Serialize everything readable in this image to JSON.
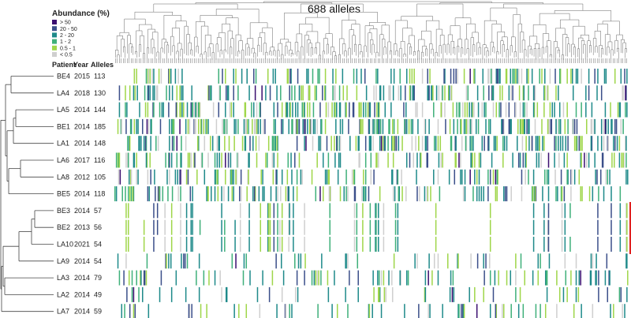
{
  "chart_data": {
    "type": "heatmap",
    "title": "688 alleles",
    "legend": {
      "title": "Abundance (%)",
      "placement": "top-left",
      "entries": [
        {
          "label": "> 50",
          "color": "#3b0f70"
        },
        {
          "label": "20 - 50",
          "color": "#3b4f8a"
        },
        {
          "label": "2 - 20",
          "color": "#1f8a8a"
        },
        {
          "label": "1 - 2",
          "color": "#3fb07a"
        },
        {
          "label": "0.5 - 1",
          "color": "#9fd64a"
        },
        {
          "label": "< 0.5",
          "color": "#cfcfcf"
        }
      ]
    },
    "columns": {
      "header_patient": "Patient",
      "header_year": "Year",
      "header_alleles": "Alleles"
    },
    "n_alleles": 688,
    "rows": [
      {
        "patient": "BE4",
        "year": "2015",
        "alleles": "113"
      },
      {
        "patient": "LA4",
        "year": "2018",
        "alleles": "130"
      },
      {
        "patient": "LA5",
        "year": "2014",
        "alleles": "144"
      },
      {
        "patient": "BE1",
        "year": "2014",
        "alleles": "185"
      },
      {
        "patient": "LA1",
        "year": "2014",
        "alleles": "148"
      },
      {
        "patient": "LA6",
        "year": "2017",
        "alleles": "116"
      },
      {
        "patient": "LA8",
        "year": "2012",
        "alleles": "105"
      },
      {
        "patient": "BE5",
        "year": "2014",
        "alleles": "118"
      },
      {
        "patient": "BE3",
        "year": "2014",
        "alleles": "57"
      },
      {
        "patient": "BE2",
        "year": "2013",
        "alleles": "56"
      },
      {
        "patient": "LA10",
        "year": "2021",
        "alleles": "54"
      },
      {
        "patient": "LA9",
        "year": "2014",
        "alleles": "54"
      },
      {
        "patient": "LA3",
        "year": "2014",
        "alleles": "79"
      },
      {
        "patient": "LA2",
        "year": "2014",
        "alleles": "49"
      },
      {
        "patient": "LA7",
        "year": "2014",
        "alleles": "59"
      }
    ],
    "highlight_group": [
      "BE3",
      "BE2",
      "LA10"
    ],
    "highlight_color": "#e02020",
    "grid": false
  }
}
